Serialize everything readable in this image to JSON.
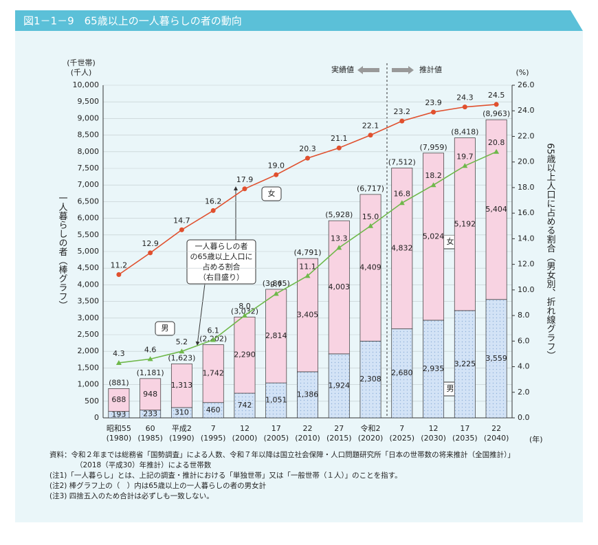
{
  "chart_data": {
    "type": "bar-line",
    "title": "図1－1－9　65歳以上の一人暮らしの者の動向",
    "categories": [
      "昭和55",
      "60",
      "平成2",
      "7",
      "12",
      "17",
      "22",
      "27",
      "令和2",
      "7",
      "12",
      "17",
      "22"
    ],
    "category_years": [
      "(1980)",
      "(1985)",
      "(1990)",
      "(1995)",
      "(2000)",
      "(2005)",
      "(2010)",
      "(2015)",
      "(2020)",
      "(2025)",
      "(2030)",
      "(2035)",
      "(2040)"
    ],
    "x_unit": "(年)",
    "y_unit": [
      "(千世帯)",
      "(千人)"
    ],
    "y2_unit": "(%)",
    "y_label": "一人暮らしの者（棒グラフ）",
    "y2_label": "65歳以上人口に占める割合（男女別、折れ線グラフ）",
    "ylim": [
      0,
      10000
    ],
    "yticks": [
      0,
      500,
      {
        "value": 1000,
        "label": "1,000"
      },
      {
        "value": 1500,
        "label": "1,500"
      },
      {
        "value": 2000,
        "label": "2,000"
      },
      {
        "value": 2500,
        "label": "2,500"
      },
      {
        "value": 3000,
        "label": "3,000"
      },
      {
        "value": 3500,
        "label": "3,500"
      },
      {
        "value": 4000,
        "label": "4,000"
      },
      {
        "value": 4500,
        "label": "4,500"
      },
      {
        "value": 5000,
        "label": "5,000"
      },
      {
        "value": 5500,
        "label": "5,500"
      },
      {
        "value": 6000,
        "label": "6,000"
      },
      {
        "value": 6500,
        "label": "6,500"
      },
      {
        "value": 7000,
        "label": "7,000"
      },
      {
        "value": 7500,
        "label": "7,500"
      },
      {
        "value": 8000,
        "label": "8,000"
      },
      {
        "value": 8500,
        "label": "8,500"
      },
      {
        "value": 9000,
        "label": "9,000"
      },
      {
        "value": 9500,
        "label": "9,500"
      },
      {
        "value": 10000,
        "label": "10,000"
      }
    ],
    "y2lim": [
      0,
      26
    ],
    "y2ticks": [
      {
        "value": 0,
        "label": "0.0"
      },
      {
        "value": 2,
        "label": "2.0"
      },
      {
        "value": 4,
        "label": "4.0"
      },
      {
        "value": 6,
        "label": "6.0"
      },
      {
        "value": 8,
        "label": "8.0"
      },
      {
        "value": 10,
        "label": "10.0"
      },
      {
        "value": 12,
        "label": "12.0"
      },
      {
        "value": 14,
        "label": "14.0"
      },
      {
        "value": 16,
        "label": "16.0"
      },
      {
        "value": 18,
        "label": "18.0"
      },
      {
        "value": 20,
        "label": "20.0"
      },
      {
        "value": 22,
        "label": "22.0"
      },
      {
        "value": 24,
        "label": "24.0"
      },
      {
        "value": 26,
        "label": "26.0"
      }
    ],
    "series": [
      {
        "name": "男",
        "type": "bar",
        "color": "#cfe0f5",
        "values": [
          193,
          233,
          310,
          460,
          742,
          1051,
          1386,
          1924,
          2308,
          2680,
          2935,
          3225,
          3559
        ],
        "value_labels": [
          "193",
          "233",
          "310",
          "460",
          "742",
          "1,051",
          "1,386",
          "1,924",
          "2,308",
          "2,680",
          "2,935",
          "3,225",
          "3,559"
        ]
      },
      {
        "name": "女",
        "type": "bar",
        "color": "#f8d3e2",
        "values": [
          688,
          948,
          1313,
          1742,
          2290,
          2814,
          3405,
          4003,
          4409,
          4832,
          5024,
          5192,
          5404
        ],
        "value_labels": [
          "688",
          "948",
          "1,313",
          "1,742",
          "2,290",
          "2,814",
          "3,405",
          "4,003",
          "4,409",
          "4,832",
          "5,024",
          "5,192",
          "5,404"
        ]
      },
      {
        "name": "男",
        "type": "line",
        "axis": "y2",
        "color": "#6fb84a",
        "values": [
          4.3,
          4.6,
          5.2,
          6.1,
          8.0,
          9.7,
          11.1,
          13.3,
          15.0,
          16.8,
          18.2,
          19.7,
          20.8
        ],
        "value_labels": [
          "4.3",
          "4.6",
          "5.2",
          "6.1",
          "8.0",
          "9.7",
          "11.1",
          "13.3",
          "15.0",
          "16.8",
          "18.2",
          "19.7",
          "20.8"
        ]
      },
      {
        "name": "女",
        "type": "line",
        "axis": "y2",
        "color": "#e0502e",
        "values": [
          11.2,
          12.9,
          14.7,
          16.2,
          17.9,
          19.0,
          20.3,
          21.1,
          22.1,
          23.2,
          23.9,
          24.3,
          24.5
        ],
        "value_labels": [
          "11.2",
          "12.9",
          "14.7",
          "16.2",
          "17.9",
          "19.0",
          "20.3",
          "21.1",
          "22.1",
          "23.2",
          "23.9",
          "24.3",
          "24.5"
        ]
      }
    ],
    "totals": {
      "values": [
        881,
        1181,
        1623,
        2202,
        3032,
        3865,
        4791,
        5928,
        6717,
        7512,
        7959,
        8418,
        8963
      ],
      "value_labels": [
        "(881)",
        "(1,181)",
        "(1,623)",
        "(2,202)",
        "(3,032)",
        "(3,865)",
        "(4,791)",
        "(5,928)",
        "(6,717)",
        "(7,512)",
        "(7,959)",
        "(8,418)",
        "(8,963)"
      ]
    },
    "annotations": {
      "actual": "実績値",
      "projected": "推計値",
      "callout": [
        "一人暮らしの者",
        "の65歳以上人口に",
        "占める割合",
        "（右目盛り）"
      ]
    },
    "source": [
      "資料：令和２年までは総務省「国勢調査」による人数、令和７年以降は国立社会保障・人口問題研究所「日本の世帯数の将来推計（全国推計）」",
      "（2018（平成30）年推計）による世帯数"
    ],
    "notes": [
      "(注1)「一人暮らし」とは、上記の調査・推計における「単独世帯」又は「一般世帯（１人）」のことを指す。",
      "(注2) 棒グラフ上の（　）内は65歳以上の一人暮らしの者の男女計",
      "(注3) 四捨五入のため合計は必ずしも一致しない。"
    ]
  }
}
